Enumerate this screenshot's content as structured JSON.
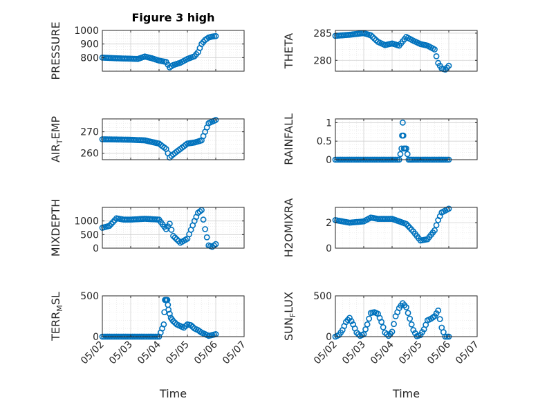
{
  "figure": {
    "title": "Figure 3 high"
  },
  "colors": {
    "marker": "#0072BD",
    "grid": "#dcdcdc",
    "axis": "#262626"
  },
  "chart_data": [
    {
      "id": "pressure",
      "type": "scatter",
      "title": "Figure 3 high",
      "ylabel": "PRESSURE",
      "ylabel_parts": [
        "PRESSURE"
      ],
      "xlabel": "",
      "show_xticks": false,
      "xlim": [
        "05/02",
        "05/07"
      ],
      "ylim": [
        700,
        1000
      ],
      "yticks": [
        800,
        900,
        1000
      ],
      "x": [
        "05/02",
        "05/02 12:00",
        "05/03",
        "05/03 06:00",
        "05/03 12:00",
        "05/03 18:00",
        "05/04",
        "05/04 06:00",
        "05/04 09:00",
        "05/04 12:00",
        "05/04 18:00",
        "05/05",
        "05/05 06:00",
        "05/05 09:00",
        "05/05 12:00",
        "05/05 15:00",
        "05/05 18:00",
        "05/05 21:00",
        "05/06"
      ],
      "values": [
        800,
        795,
        792,
        790,
        808,
        795,
        778,
        768,
        728,
        745,
        762,
        790,
        810,
        840,
        900,
        930,
        948,
        955,
        958
      ]
    },
    {
      "id": "theta",
      "type": "scatter",
      "title": "",
      "ylabel": "THETA",
      "ylabel_parts": [
        "THETA"
      ],
      "xlabel": "",
      "show_xticks": false,
      "xlim": [
        "05/02",
        "05/07"
      ],
      "ylim": [
        278,
        285.5
      ],
      "yticks": [
        280,
        285
      ],
      "x": [
        "05/02",
        "05/02 12:00",
        "05/03",
        "05/03 06:00",
        "05/03 12:00",
        "05/03 18:00",
        "05/04",
        "05/04 06:00",
        "05/04 12:00",
        "05/04 18:00",
        "05/05",
        "05/05 06:00",
        "05/05 12:00",
        "05/05 15:00",
        "05/05 18:00",
        "05/05 21:00",
        "05/06"
      ],
      "values": [
        284.5,
        284.7,
        285.0,
        284.6,
        283.4,
        282.8,
        283.1,
        282.7,
        284.3,
        283.6,
        283.0,
        282.7,
        282.0,
        279.5,
        278.5,
        278.3,
        279.0
      ]
    },
    {
      "id": "air_temp",
      "type": "scatter",
      "title": "",
      "ylabel": "AIR_TEMP",
      "ylabel_parts": [
        "AIR",
        "T",
        "EMP"
      ],
      "xlabel": "",
      "show_xticks": false,
      "xlim": [
        "05/02",
        "05/07"
      ],
      "ylim": [
        257,
        276
      ],
      "yticks": [
        260,
        270
      ],
      "x": [
        "05/02",
        "05/02 12:00",
        "05/03",
        "05/03 12:00",
        "05/04",
        "05/04 06:00",
        "05/04 09:00",
        "05/04 12:00",
        "05/04 18:00",
        "05/05",
        "05/05 06:00",
        "05/05 12:00",
        "05/05 15:00",
        "05/05 18:00",
        "05/06"
      ],
      "values": [
        266.5,
        266.4,
        266.3,
        266.0,
        264.5,
        262.0,
        258.0,
        259.5,
        262.0,
        264.5,
        265.0,
        266.0,
        270.0,
        274.0,
        275.5
      ]
    },
    {
      "id": "rainfall",
      "type": "scatter",
      "title": "",
      "ylabel": "RAINFALL",
      "ylabel_parts": [
        "RAINFALL"
      ],
      "xlabel": "",
      "show_xticks": false,
      "xlim": [
        "05/02",
        "05/07"
      ],
      "ylim": [
        0,
        1.1
      ],
      "yticks": [
        0,
        0.5,
        1
      ],
      "x": [
        "05/02",
        "05/02 12:00",
        "05/03",
        "05/03 12:00",
        "05/04",
        "05/04 06:00",
        "05/04 08:00",
        "05/04 09:00",
        "05/04 10:00",
        "05/04 12:00",
        "05/04 14:00",
        "05/04 18:00",
        "05/05",
        "05/05 12:00",
        "05/06"
      ],
      "values": [
        0,
        0,
        0,
        0,
        0,
        0,
        0.3,
        1.0,
        0.3,
        0.3,
        0,
        0,
        0,
        0,
        0
      ]
    },
    {
      "id": "mixdepth",
      "type": "scatter",
      "title": "",
      "ylabel": "MIXDEPTH",
      "ylabel_parts": [
        "MIXDEPTH"
      ],
      "xlabel": "",
      "show_xticks": false,
      "xlim": [
        "05/02",
        "05/07"
      ],
      "ylim": [
        0,
        1500
      ],
      "yticks": [
        0,
        500,
        1000
      ],
      "x": [
        "05/02",
        "05/02 06:00",
        "05/02 12:00",
        "05/02 18:00",
        "05/03",
        "05/03 12:00",
        "05/04",
        "05/04 06:00",
        "05/04 09:00",
        "05/04 12:00",
        "05/04 18:00",
        "05/05",
        "05/05 06:00",
        "05/05 09:00",
        "05/05 12:00",
        "05/05 15:00",
        "05/05 18:00",
        "05/05 21:00",
        "05/06"
      ],
      "values": [
        750,
        820,
        1100,
        1050,
        1050,
        1080,
        1050,
        700,
        900,
        450,
        200,
        350,
        1000,
        1300,
        1400,
        700,
        100,
        50,
        150
      ]
    },
    {
      "id": "h2omixra",
      "type": "scatter",
      "title": "",
      "ylabel": "H2OMIXRA",
      "ylabel_parts": [
        "H2OMIXRA"
      ],
      "xlabel": "",
      "show_xticks": false,
      "xlim": [
        "05/02",
        "05/07"
      ],
      "ylim": [
        0,
        3.2
      ],
      "yticks": [
        0,
        2
      ],
      "x": [
        "05/02",
        "05/02 12:00",
        "05/03",
        "05/03 06:00",
        "05/03 12:00",
        "05/04",
        "05/04 06:00",
        "05/04 12:00",
        "05/04 18:00",
        "05/05",
        "05/05 06:00",
        "05/05 12:00",
        "05/05 15:00",
        "05/05 18:00",
        "05/06"
      ],
      "values": [
        2.2,
        2.0,
        2.1,
        2.4,
        2.3,
        2.3,
        2.1,
        1.9,
        1.3,
        0.6,
        0.7,
        1.4,
        2.2,
        2.8,
        3.1
      ]
    },
    {
      "id": "terr_msl",
      "type": "scatter",
      "title": "",
      "ylabel": "TERR_MSL",
      "ylabel_parts": [
        "TERR",
        "M",
        "SL"
      ],
      "xlabel": "Time",
      "show_xticks": true,
      "xlim": [
        "05/02",
        "05/07"
      ],
      "ylim": [
        0,
        500
      ],
      "yticks": [
        0,
        500
      ],
      "xticks": [
        "05/02",
        "05/03",
        "05/04",
        "05/05",
        "05/06",
        "05/07"
      ],
      "x": [
        "05/02",
        "05/02 12:00",
        "05/03",
        "05/03 12:00",
        "05/04",
        "05/04 04:00",
        "05/04 05:00",
        "05/04 06:00",
        "05/04 07:00",
        "05/04 08:00",
        "05/04 10:00",
        "05/04 12:00",
        "05/04 15:00",
        "05/04 18:00",
        "05/04 21:00",
        "05/05",
        "05/05 03:00",
        "05/05 06:00",
        "05/05 09:00",
        "05/05 12:00",
        "05/05 15:00",
        "05/05 18:00",
        "05/06"
      ],
      "values": [
        0,
        0,
        0,
        0,
        0,
        150,
        450,
        450,
        450,
        330,
        230,
        190,
        150,
        130,
        110,
        150,
        140,
        100,
        80,
        50,
        30,
        10,
        30
      ]
    },
    {
      "id": "sun_flux",
      "type": "scatter",
      "title": "",
      "ylabel": "SUN_FLUX",
      "ylabel_parts": [
        "SUN",
        "F",
        "LUX"
      ],
      "xlabel": "Time",
      "show_xticks": true,
      "xlim": [
        "05/02",
        "05/07"
      ],
      "ylim": [
        0,
        500
      ],
      "yticks": [
        0,
        500
      ],
      "xticks": [
        "05/02",
        "05/03",
        "05/04",
        "05/05",
        "05/06",
        "05/07"
      ],
      "x": [
        "05/02",
        "05/02 03:00",
        "05/02 06:00",
        "05/02 09:00",
        "05/02 12:00",
        "05/02 15:00",
        "05/02 18:00",
        "05/02 21:00",
        "05/03",
        "05/03 03:00",
        "05/03 06:00",
        "05/03 09:00",
        "05/03 12:00",
        "05/03 15:00",
        "05/03 18:00",
        "05/03 21:00",
        "05/04",
        "05/04 03:00",
        "05/04 06:00",
        "05/04 09:00",
        "05/04 12:00",
        "05/04 15:00",
        "05/04 18:00",
        "05/04 21:00",
        "05/05",
        "05/05 03:00",
        "05/05 06:00",
        "05/05 09:00",
        "05/05 12:00",
        "05/05 15:00",
        "05/05 18:00",
        "05/05 21:00",
        "05/06"
      ],
      "values": [
        0,
        20,
        80,
        180,
        230,
        150,
        50,
        10,
        30,
        150,
        290,
        300,
        280,
        180,
        50,
        10,
        60,
        250,
        350,
        410,
        360,
        220,
        80,
        5,
        20,
        90,
        200,
        220,
        250,
        320,
        110,
        0,
        0
      ]
    }
  ]
}
